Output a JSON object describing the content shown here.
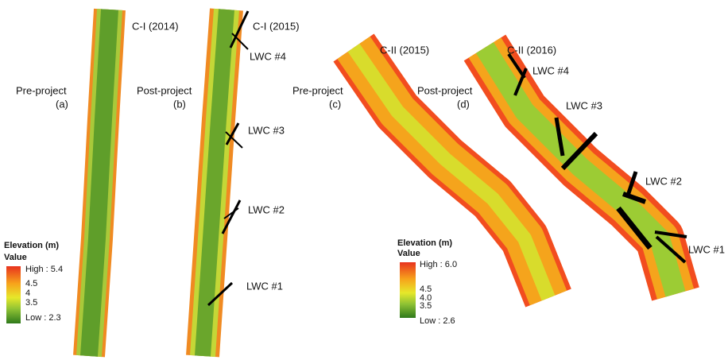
{
  "panels": [
    {
      "site": "C-I (2014)",
      "phase": "Pre-project",
      "letter": "(a)"
    },
    {
      "site": "C-I (2015)",
      "phase": "Post-project",
      "letter": "(b)",
      "lwc": [
        "LWC #4",
        "LWC #3",
        "LWC #2",
        "LWC #1"
      ]
    },
    {
      "site": "C-II (2015)",
      "phase": "Pre-project",
      "letter": "(c)"
    },
    {
      "site": "C-II (2016)",
      "phase": "Post-project",
      "letter": "(d)",
      "lwc": [
        "LWC #4",
        "LWC #3",
        "LWC #2",
        "LWC #1"
      ]
    }
  ],
  "legends": [
    {
      "title": "Elevation (m)",
      "subtitle": "Value",
      "high": "High : 5.4",
      "ticks": [
        "4.5",
        "4",
        "3.5"
      ],
      "low": "Low : 2.3"
    },
    {
      "title": "Elevation (m)",
      "subtitle": "Value",
      "high": "High : 6.0",
      "ticks": [
        "4.5",
        "4.0",
        "3.5"
      ],
      "low": "Low : 2.6"
    }
  ]
}
